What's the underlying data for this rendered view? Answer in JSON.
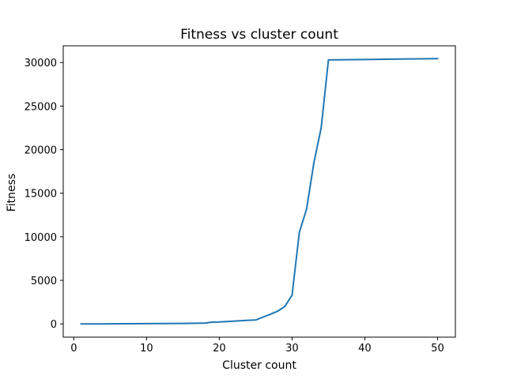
{
  "chart_data": {
    "type": "line",
    "title": "Fitness vs cluster count",
    "xlabel": "Cluster count",
    "ylabel": "Fitness",
    "xlim": [
      -1.45,
      52.45
    ],
    "ylim": [
      -1520,
      31920
    ],
    "grid": false,
    "x_ticks": [
      0,
      10,
      20,
      30,
      40,
      50
    ],
    "y_ticks": [
      0,
      5000,
      10000,
      15000,
      20000,
      25000,
      30000
    ],
    "x_tick_labels": [
      "0",
      "10",
      "20",
      "30",
      "40",
      "50"
    ],
    "y_tick_labels": [
      "0",
      "5000",
      "10000",
      "15000",
      "20000",
      "25000",
      "30000"
    ],
    "series": [
      {
        "color": "#1f77b4",
        "x": [
          1,
          5,
          10,
          15,
          18,
          19,
          20,
          22,
          24,
          25,
          26,
          27,
          28,
          29,
          30,
          31,
          32,
          33,
          34,
          35,
          40,
          45,
          50
        ],
        "y": [
          0,
          5,
          30,
          60,
          90,
          200,
          220,
          320,
          420,
          450,
          780,
          1100,
          1450,
          2000,
          3300,
          10500,
          13200,
          18500,
          22500,
          30300,
          30350,
          30400,
          30450
        ]
      }
    ]
  }
}
